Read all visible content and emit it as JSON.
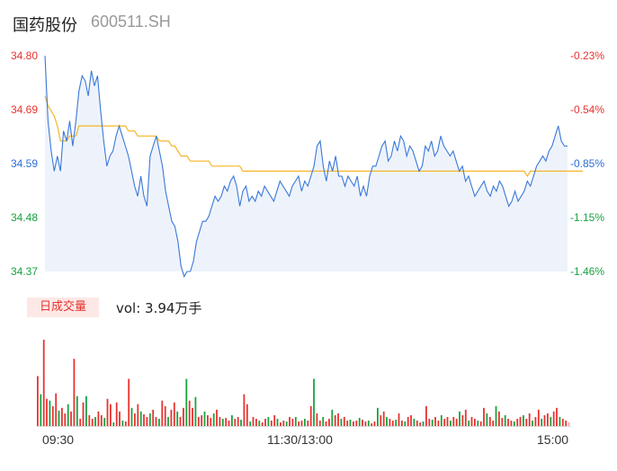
{
  "header": {
    "name": "国药股份",
    "code": "600511.SH"
  },
  "price_axis": {
    "left_labels": [
      "34.80",
      "34.69",
      "34.59",
      "34.48",
      "34.37"
    ],
    "right_labels": [
      "-0.23%",
      "-0.54%",
      "-0.85%",
      "-1.15%",
      "-1.46%"
    ]
  },
  "volume_panel": {
    "badge": "日成交量",
    "vol_label": "vol: 3.94万手"
  },
  "time_axis": {
    "labels": [
      "09:30",
      "11:30/13:00",
      "15:00"
    ]
  },
  "colors": {
    "price_line": "#3a78d8",
    "avg_line": "#f5b52a",
    "up": "#e8322f",
    "down": "#17a340",
    "neutral": "#2c6fd6"
  },
  "chart_data": [
    {
      "type": "line",
      "title": "",
      "ylim": [
        34.37,
        34.8
      ],
      "series": [
        {
          "values": [
            34.8,
            34.67,
            34.61,
            34.57,
            34.6,
            34.57,
            34.65,
            34.63,
            34.67,
            34.62,
            34.67,
            34.73,
            34.76,
            34.75,
            34.72,
            34.77,
            34.74,
            34.76,
            34.69,
            34.63,
            34.58,
            34.6,
            34.61,
            34.64,
            34.66,
            34.64,
            34.62,
            34.6,
            34.57,
            34.54,
            34.52,
            34.56,
            34.52,
            34.5,
            34.6,
            34.62,
            34.64,
            34.61,
            34.58,
            34.53,
            34.5,
            34.47,
            34.46,
            34.43,
            34.38,
            34.36,
            34.37,
            34.37,
            34.39,
            34.43,
            34.45,
            34.47,
            34.47,
            34.48,
            34.5,
            34.52,
            34.51,
            34.52,
            34.54,
            34.53,
            34.55,
            34.56,
            34.54,
            34.5,
            34.53,
            34.54,
            34.51,
            34.52,
            34.51,
            34.53,
            34.52,
            34.54,
            34.53,
            34.52,
            34.51,
            34.53,
            34.55,
            34.54,
            34.53,
            34.52,
            34.54,
            34.55,
            34.56,
            34.53,
            34.55,
            34.54,
            34.56,
            34.58,
            34.62,
            34.63,
            34.58,
            34.55,
            34.59,
            34.57,
            34.6,
            34.56,
            34.56,
            34.54,
            34.56,
            34.55,
            34.54,
            34.56,
            34.52,
            34.54,
            34.52,
            34.56,
            34.58,
            34.58,
            34.6,
            34.62,
            34.63,
            34.59,
            34.6,
            34.63,
            34.61,
            34.64,
            34.63,
            34.6,
            34.62,
            34.61,
            34.59,
            34.57,
            34.58,
            34.62,
            34.61,
            34.63,
            34.6,
            34.61,
            34.64,
            34.62,
            34.61,
            34.6,
            34.61,
            34.59,
            34.57,
            34.58,
            34.55,
            34.56,
            34.54,
            34.52,
            34.53,
            34.54,
            34.55,
            34.53,
            34.52,
            34.54,
            34.53,
            34.55,
            34.54,
            34.52,
            34.5,
            34.51,
            34.53,
            34.51,
            34.52,
            34.53,
            34.55,
            34.54,
            34.56,
            34.58,
            34.59,
            34.6,
            34.59,
            34.61,
            34.62,
            34.64,
            34.66,
            34.63,
            34.62,
            34.62
          ]
        },
        {
          "values": [
            34.72,
            34.7,
            34.69,
            34.68,
            34.66,
            34.63,
            34.63,
            34.63,
            34.64,
            34.64,
            34.64,
            34.66,
            34.66,
            34.66,
            34.66,
            34.66,
            34.66,
            34.66,
            34.66,
            34.66,
            34.66,
            34.66,
            34.66,
            34.66,
            34.66,
            34.66,
            34.66,
            34.65,
            34.65,
            34.65,
            34.64,
            34.64,
            34.64,
            34.64,
            34.64,
            34.64,
            34.64,
            34.63,
            34.63,
            34.63,
            34.63,
            34.62,
            34.62,
            34.61,
            34.6,
            34.6,
            34.6,
            34.59,
            34.59,
            34.59,
            34.59,
            34.59,
            34.59,
            34.59,
            34.58,
            34.58,
            34.58,
            34.58,
            34.58,
            34.58,
            34.58,
            34.58,
            34.58,
            34.58,
            34.57,
            34.57,
            34.57,
            34.57,
            34.57,
            34.57,
            34.57,
            34.57,
            34.57,
            34.57,
            34.57,
            34.57,
            34.57,
            34.57,
            34.57,
            34.57,
            34.57,
            34.57,
            34.57,
            34.57,
            34.57,
            34.57,
            34.57,
            34.57,
            34.57,
            34.57,
            34.57,
            34.57,
            34.57,
            34.57,
            34.57,
            34.57,
            34.57,
            34.57,
            34.57,
            34.57,
            34.57,
            34.57,
            34.57,
            34.57,
            34.57,
            34.57,
            34.57,
            34.57,
            34.57,
            34.57,
            34.57,
            34.57,
            34.57,
            34.57,
            34.57,
            34.57,
            34.57,
            34.57,
            34.57,
            34.57,
            34.57,
            34.57,
            34.57,
            34.57,
            34.57,
            34.57,
            34.57,
            34.57,
            34.57,
            34.57,
            34.57,
            34.57,
            34.57,
            34.57,
            34.57,
            34.57,
            34.57,
            34.57,
            34.57,
            34.57,
            34.57,
            34.57,
            34.57,
            34.57,
            34.57,
            34.57,
            34.57,
            34.57,
            34.57,
            34.57,
            34.57,
            34.57,
            34.57,
            34.57,
            34.57,
            34.57,
            34.56,
            34.57,
            34.57,
            34.57,
            34.57,
            34.57,
            34.57,
            34.57,
            34.57,
            34.57,
            34.57,
            34.57,
            34.57,
            34.57,
            34.57,
            34.57,
            34.57,
            34.57,
            34.57
          ]
        }
      ]
    },
    {
      "type": "bar",
      "title": "",
      "series": [
        {
          "values": [
            0.55,
            0.35,
            0.95,
            0.3,
            0.28,
            0.22,
            0.36,
            0.17,
            0.2,
            0.14,
            0.24,
            0.16,
            0.74,
            0.33,
            0.08,
            0.26,
            0.33,
            0.12,
            0.08,
            0.1,
            0.16,
            0.12,
            0.09,
            0.3,
            0.24,
            0.04,
            0.26,
            0.16,
            0.06,
            0.05,
            0.52,
            0.2,
            0.14,
            0.24,
            0.16,
            0.13,
            0.1,
            0.14,
            0.18,
            0.1,
            0.08,
            0.28,
            0.22,
            0.1,
            0.18,
            0.26,
            0.16,
            0.1,
            0.2,
            0.52,
            0.28,
            0.2,
            0.32,
            0.1,
            0.12,
            0.16,
            0.12,
            0.09,
            0.14,
            0.18,
            0.1,
            0.08,
            0.09,
            0.06,
            0.12,
            0.08,
            0.1,
            0.07,
            0.35,
            0.24,
            0.05,
            0.1,
            0.08,
            0.06,
            0.04,
            0.08,
            0.1,
            0.06,
            0.12,
            0.08,
            0.04,
            0.06,
            0.05,
            0.1,
            0.08,
            0.1,
            0.05,
            0.06,
            0.08,
            0.06,
            0.22,
            0.52,
            0.14,
            0.06,
            0.1,
            0.05,
            0.08,
            0.18,
            0.12,
            0.14,
            0.08,
            0.1,
            0.06,
            0.07,
            0.05,
            0.06,
            0.09,
            0.07,
            0.05,
            0.06,
            0.03,
            0.05,
            0.2,
            0.12,
            0.16,
            0.1,
            0.08,
            0.06,
            0.07,
            0.14,
            0.06,
            0.05,
            0.1,
            0.12,
            0.08,
            0.06,
            0.04,
            0.05,
            0.22,
            0.08,
            0.07,
            0.1,
            0.06,
            0.12,
            0.08,
            0.1,
            0.06,
            0.1,
            0.08,
            0.16,
            0.12,
            0.18,
            0.06,
            0.1,
            0.08,
            0.06,
            0.05,
            0.2,
            0.14,
            0.1,
            0.06,
            0.22,
            0.16,
            0.09,
            0.12,
            0.08,
            0.06,
            0.05,
            0.08,
            0.1,
            0.12,
            0.08,
            0.14,
            0.06,
            0.1,
            0.18,
            0.08,
            0.12,
            0.14,
            0.1,
            0.16,
            0.2,
            0.1,
            0.08,
            0.06,
            0.04
          ]
        }
      ]
    }
  ]
}
